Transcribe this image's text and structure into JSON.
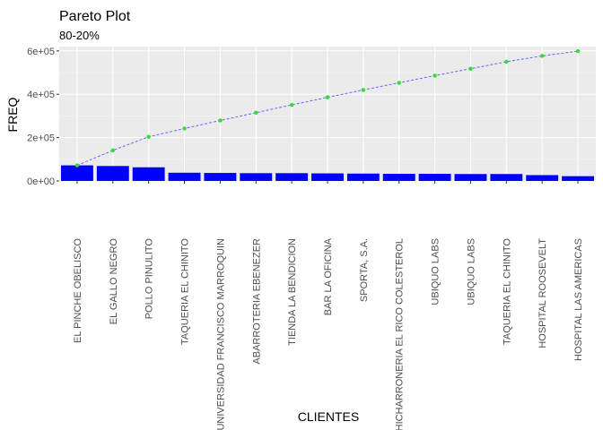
{
  "chart_data": {
    "type": "bar",
    "title": "Pareto Plot",
    "subtitle": "80-20%",
    "xlabel": "CLIENTES",
    "ylabel": "FREQ",
    "ylim": [
      0,
      620000
    ],
    "yticks": [
      0,
      200000,
      400000,
      600000
    ],
    "ytick_labels": [
      "0e+00",
      "2e+05",
      "4e+05",
      "6e+05"
    ],
    "grid": true,
    "categories": [
      "EL PINCHE OBELISCO",
      "EL GALLO NEGRO",
      "POLLO PINULITO",
      "TAQUERIA EL CHINITO",
      "UNIVERSIDAD FRANCISCO MARROQUIN",
      "ABARROTERIA EBENEZER",
      "TIENDA LA BENDICION",
      "BAR LA OFICINA",
      "SPORTA, S.A.",
      "CHICHARRONERIA EL RICO COLESTEROL",
      "UBIQUO LABS",
      "UBIQUO LABS",
      "TAQUERIA EL CHINITO",
      "HOSPITAL ROOSEVELT",
      "HOSPITAL LAS AMERICAS"
    ],
    "series": [
      {
        "kind": "bar",
        "values": [
          72000,
          69000,
          63000,
          38000,
          37000,
          36000,
          36000,
          35000,
          34000,
          33000,
          33000,
          32000,
          32000,
          27000,
          22000
        ]
      },
      {
        "kind": "cumulative-line",
        "values": [
          72000,
          141000,
          204000,
          242000,
          279000,
          315000,
          351000,
          386000,
          420000,
          453000,
          486000,
          518000,
          550000,
          577000,
          599000
        ]
      }
    ],
    "colors": {
      "panel": "#ebebeb",
      "grid_major": "#ffffff",
      "grid_minor": "#f5f5f5",
      "bar": "#0000ff",
      "line": "#6666ff",
      "point": "#33dd33"
    }
  }
}
